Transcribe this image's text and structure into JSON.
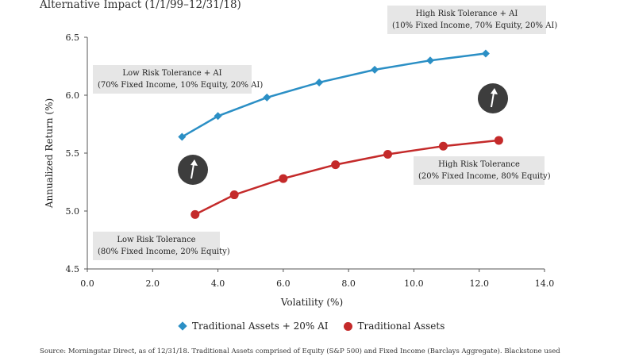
{
  "title": "Alternative Impact (1/1/99–12/31/18)",
  "source_note": "Source: Morningstar Direct, as of 12/31/18. Traditional Assets comprised of Equity (S&P 500) and Fixed Income (Barclays Aggregate). Blackstone used",
  "callouts": {
    "low_ai": [
      "Low Risk Tolerance + AI",
      "(70% Fixed Income, 10% Equity, 20% AI)"
    ],
    "high_ai": [
      "High Risk Tolerance + AI",
      "(10% Fixed Income, 70% Equity, 20% AI)"
    ],
    "low": [
      "Low Risk Tolerance",
      "(80% Fixed Income, 20% Equity)"
    ],
    "high": [
      "High Risk Tolerance",
      "(20% Fixed Income, 80% Equity)"
    ]
  },
  "legend": {
    "ai": "Traditional Assets + 20% AI",
    "trad": "Traditional Assets"
  },
  "colors": {
    "ai_series": "#2b8fc5",
    "trad_series": "#c42a2a",
    "arrow_circle": "#3d3d3d",
    "callout_bg": "#e6e6e6"
  },
  "icons": [
    "up-arrow-icon"
  ],
  "chart_data": {
    "type": "line",
    "xlabel": "Volatility (%)",
    "ylabel": "Annualized Return (%)",
    "xlim": [
      0,
      14
    ],
    "ylim": [
      4.5,
      6.5
    ],
    "xticks": [
      "0.0",
      "2.0",
      "4.0",
      "6.0",
      "8.0",
      "10.0",
      "12.0",
      "14.0"
    ],
    "yticks": [
      "4.5",
      "5.0",
      "5.5",
      "6.0",
      "6.5"
    ],
    "grid": false,
    "legend_position": "bottom",
    "series": [
      {
        "name": "Traditional Assets + 20% AI",
        "marker": "diamond",
        "x": [
          2.9,
          4.0,
          5.5,
          7.1,
          8.8,
          10.5,
          12.2
        ],
        "y": [
          5.64,
          5.82,
          5.98,
          6.11,
          6.22,
          6.3,
          6.36
        ]
      },
      {
        "name": "Traditional Assets",
        "marker": "circle",
        "x": [
          3.3,
          4.5,
          6.0,
          7.6,
          9.2,
          10.9,
          12.6
        ],
        "y": [
          4.97,
          5.14,
          5.28,
          5.4,
          5.49,
          5.56,
          5.61
        ]
      }
    ]
  }
}
